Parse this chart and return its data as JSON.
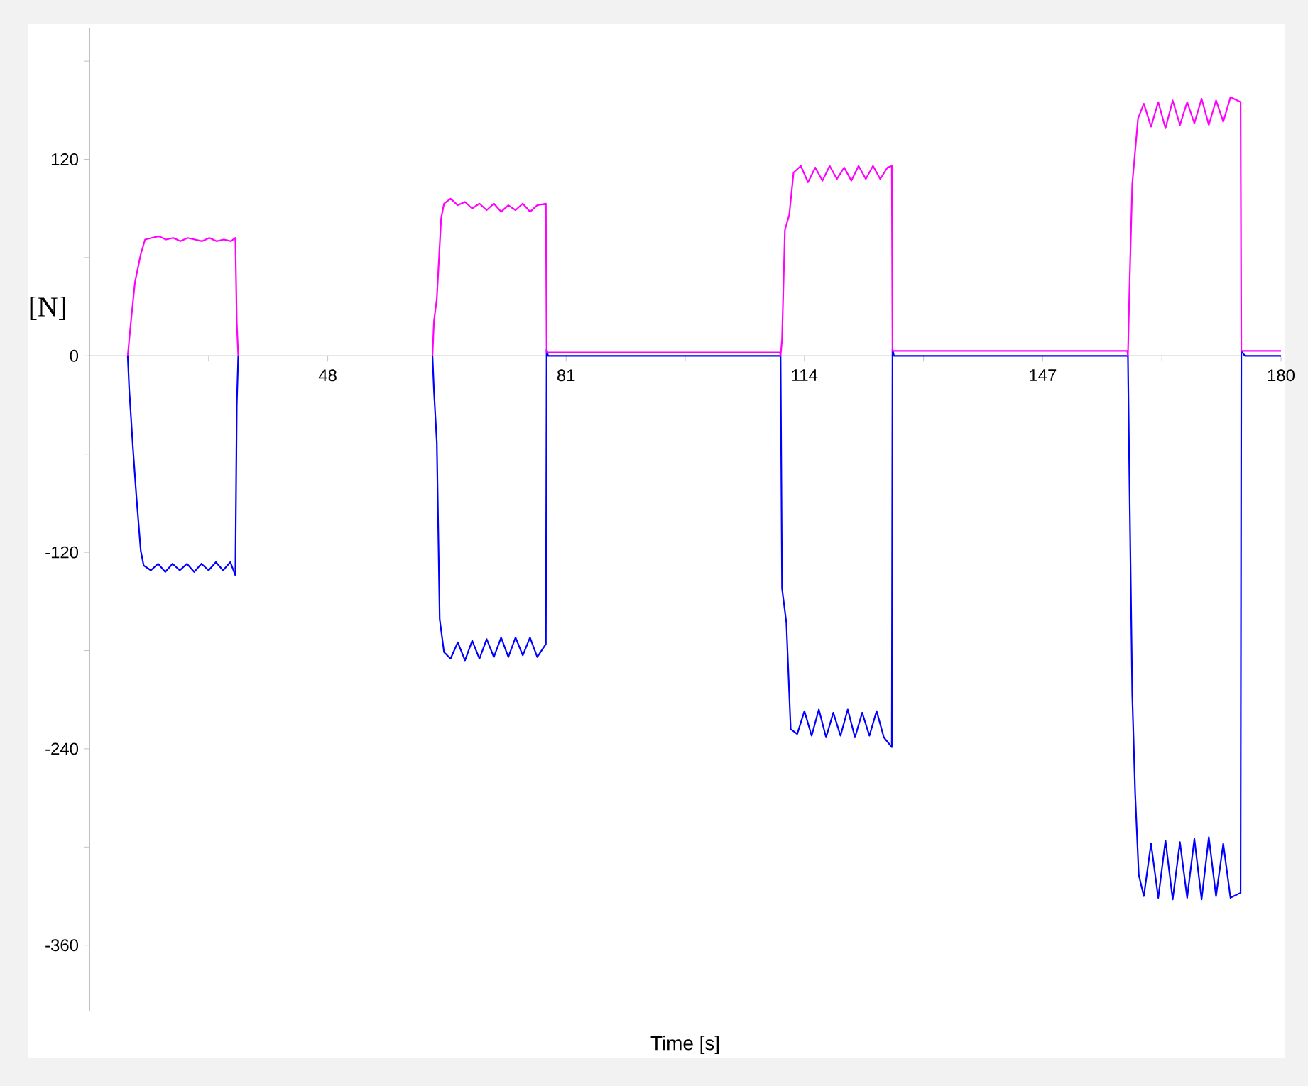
{
  "chart_data": {
    "type": "line",
    "xlabel": "Time [s]",
    "ylabel": "[N]",
    "xlim": [
      15,
      180
    ],
    "ylim": [
      -400,
      200
    ],
    "xticks": [
      {
        "value": 31.5,
        "label": null
      },
      48,
      {
        "value": 64.5,
        "label": null
      },
      81,
      {
        "value": 97.5,
        "label": null
      },
      114,
      {
        "value": 130.5,
        "label": null
      },
      147,
      {
        "value": 163.5,
        "label": null
      },
      180
    ],
    "yticks": [
      -360,
      {
        "value": -300,
        "label": null
      },
      -240,
      {
        "value": -180,
        "label": null
      },
      -120,
      {
        "value": -60,
        "label": null
      },
      0,
      {
        "value": 60,
        "label": null
      },
      120,
      {
        "value": 180,
        "label": null
      }
    ],
    "series": [
      {
        "color": "#0000ff",
        "x": [
          20.3,
          20.5,
          21.0,
          21.5,
          22.1,
          22.5,
          23.5,
          24.5,
          25.5,
          26.5,
          27.5,
          28.5,
          29.5,
          30.5,
          31.5,
          32.5,
          33.5,
          34.5,
          35.2,
          35.4,
          35.6,
          49,
          62.5,
          62.7,
          63.1,
          63.5,
          64.1,
          65,
          66,
          67,
          68,
          69,
          70,
          71,
          72,
          73,
          74,
          75,
          76,
          77,
          78.2,
          78.3,
          78.5,
          110.7,
          110.9,
          111.5,
          112.1,
          113,
          114,
          115,
          116,
          117,
          118,
          119,
          120,
          121,
          122,
          123,
          124,
          125,
          126.1,
          126.2,
          126.4,
          158.8,
          159.0,
          159.4,
          159.8,
          160.3,
          161,
          162,
          163,
          164,
          165,
          166,
          167,
          168,
          169,
          170,
          171,
          172,
          173,
          174.4,
          174.5,
          175,
          180
        ],
        "values": [
          0,
          -20,
          -55,
          -86,
          -119,
          -128,
          -131,
          -127,
          -132,
          -127,
          -131,
          -127,
          -132,
          -127,
          -131,
          -126,
          -131,
          -126,
          -134,
          -30,
          0,
          null,
          0,
          -21,
          -53,
          -161,
          -181,
          -185,
          -175,
          -186,
          -174,
          -185,
          -173,
          -184,
          -172,
          -184,
          -172,
          -183,
          -172,
          -184,
          -176,
          4,
          0,
          0,
          -142,
          -163,
          -228,
          -231,
          -217,
          -232,
          -216,
          -233,
          -218,
          -232,
          -216,
          -233,
          -218,
          -232,
          -217,
          -233,
          -239,
          4,
          0,
          0,
          -74,
          -207,
          -267,
          -317,
          -330,
          -298,
          -331,
          -296,
          -332,
          -297,
          -331,
          -295,
          -332,
          -294,
          -330,
          -298,
          -331,
          -328,
          3,
          0,
          0
        ]
      },
      {
        "color": "#ff00ff",
        "x": [
          20.3,
          20.7,
          21.3,
          22.1,
          22.7,
          23.6,
          24.6,
          25.6,
          26.6,
          27.6,
          28.6,
          29.6,
          30.6,
          31.6,
          32.6,
          33.6,
          34.6,
          35.2,
          35.4,
          35.6,
          49,
          62.5,
          62.7,
          63.1,
          63.7,
          64.1,
          65,
          66,
          67,
          68,
          69,
          70,
          71,
          72,
          73,
          74,
          75,
          76,
          77,
          78.2,
          78.3,
          110.6,
          110.7,
          110.9,
          111.3,
          111.9,
          112.5,
          113.5,
          114.5,
          115.5,
          116.5,
          117.5,
          118.5,
          119.5,
          120.5,
          121.5,
          122.5,
          123.5,
          124.5,
          125.5,
          126.1,
          126.2,
          158.7,
          158.8,
          159.0,
          159.4,
          159.8,
          160.2,
          161,
          162,
          163,
          164,
          165,
          166,
          167,
          168,
          169,
          170,
          171,
          172,
          173,
          174.4,
          174.5,
          180
        ],
        "values": [
          0,
          19,
          45,
          62,
          71,
          72,
          73,
          71,
          72,
          70,
          72,
          71,
          70,
          72,
          70,
          71,
          70,
          72,
          20,
          0,
          null,
          0,
          21,
          35,
          84,
          93,
          96,
          92,
          94,
          90,
          93,
          89,
          93,
          88,
          92,
          89,
          93,
          88,
          92,
          93,
          2,
          2,
          0,
          10,
          77,
          86,
          112,
          116,
          106,
          115,
          107,
          116,
          108,
          115,
          107,
          116,
          108,
          116,
          108,
          115,
          116,
          3,
          3,
          0,
          39,
          105,
          125,
          145,
          154,
          140,
          155,
          139,
          156,
          141,
          155,
          142,
          157,
          141,
          156,
          143,
          158,
          155,
          3,
          3
        ]
      }
    ]
  }
}
